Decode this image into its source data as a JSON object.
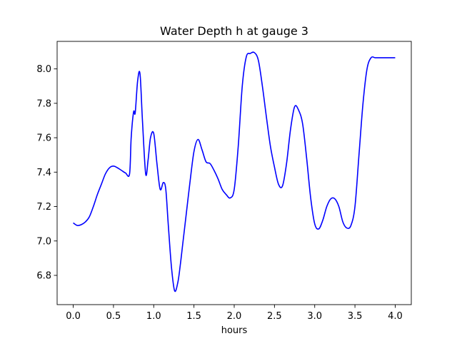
{
  "chart_data": {
    "type": "line",
    "title": "Water Depth h at gauge 3",
    "xlabel": "hours",
    "ylabel": "",
    "xlim": [
      -0.2,
      4.2
    ],
    "ylim": [
      6.63,
      8.16
    ],
    "xticks": [
      0.0,
      0.5,
      1.0,
      1.5,
      2.0,
      2.5,
      3.0,
      3.5,
      4.0
    ],
    "xtick_labels": [
      "0.0",
      "0.5",
      "1.0",
      "1.5",
      "2.0",
      "2.5",
      "3.0",
      "3.5",
      "4.0"
    ],
    "yticks": [
      6.8,
      7.0,
      7.2,
      7.4,
      7.6,
      7.8,
      8.0
    ],
    "ytick_labels": [
      "6.8",
      "7.0",
      "7.2",
      "7.4",
      "7.6",
      "7.8",
      "8.0"
    ],
    "grid": false,
    "series": [
      {
        "color": "#0000ff",
        "x": [
          0.0,
          0.05,
          0.1,
          0.15,
          0.2,
          0.25,
          0.3,
          0.35,
          0.4,
          0.45,
          0.5,
          0.55,
          0.6,
          0.65,
          0.7,
          0.72,
          0.75,
          0.77,
          0.8,
          0.83,
          0.86,
          0.9,
          0.93,
          0.96,
          1.0,
          1.04,
          1.08,
          1.12,
          1.15,
          1.18,
          1.22,
          1.26,
          1.3,
          1.33,
          1.36,
          1.4,
          1.45,
          1.5,
          1.55,
          1.6,
          1.65,
          1.7,
          1.75,
          1.8,
          1.85,
          1.9,
          1.95,
          2.0,
          2.05,
          2.1,
          2.15,
          2.2,
          2.25,
          2.3,
          2.35,
          2.4,
          2.45,
          2.5,
          2.55,
          2.6,
          2.65,
          2.7,
          2.75,
          2.8,
          2.85,
          2.9,
          2.95,
          3.0,
          3.05,
          3.1,
          3.15,
          3.2,
          3.25,
          3.3,
          3.35,
          3.4,
          3.45,
          3.5,
          3.55,
          3.6,
          3.65,
          3.7,
          3.75,
          3.8,
          3.85,
          3.9,
          3.95,
          4.0
        ],
        "y": [
          7.105,
          7.09,
          7.095,
          7.11,
          7.14,
          7.2,
          7.27,
          7.33,
          7.39,
          7.425,
          7.435,
          7.425,
          7.41,
          7.395,
          7.39,
          7.6,
          7.75,
          7.745,
          7.93,
          7.97,
          7.7,
          7.39,
          7.47,
          7.6,
          7.625,
          7.45,
          7.3,
          7.34,
          7.3,
          7.1,
          6.85,
          6.71,
          6.76,
          6.86,
          6.98,
          7.14,
          7.34,
          7.52,
          7.59,
          7.53,
          7.46,
          7.45,
          7.41,
          7.36,
          7.3,
          7.27,
          7.25,
          7.3,
          7.55,
          7.9,
          8.07,
          8.09,
          8.095,
          8.05,
          7.9,
          7.72,
          7.55,
          7.43,
          7.33,
          7.32,
          7.45,
          7.65,
          7.78,
          7.76,
          7.68,
          7.48,
          7.25,
          7.1,
          7.07,
          7.12,
          7.2,
          7.245,
          7.245,
          7.2,
          7.11,
          7.075,
          7.09,
          7.2,
          7.5,
          7.8,
          8.0,
          8.065,
          8.065,
          8.065,
          8.065,
          8.065,
          8.065,
          8.065
        ]
      }
    ]
  }
}
